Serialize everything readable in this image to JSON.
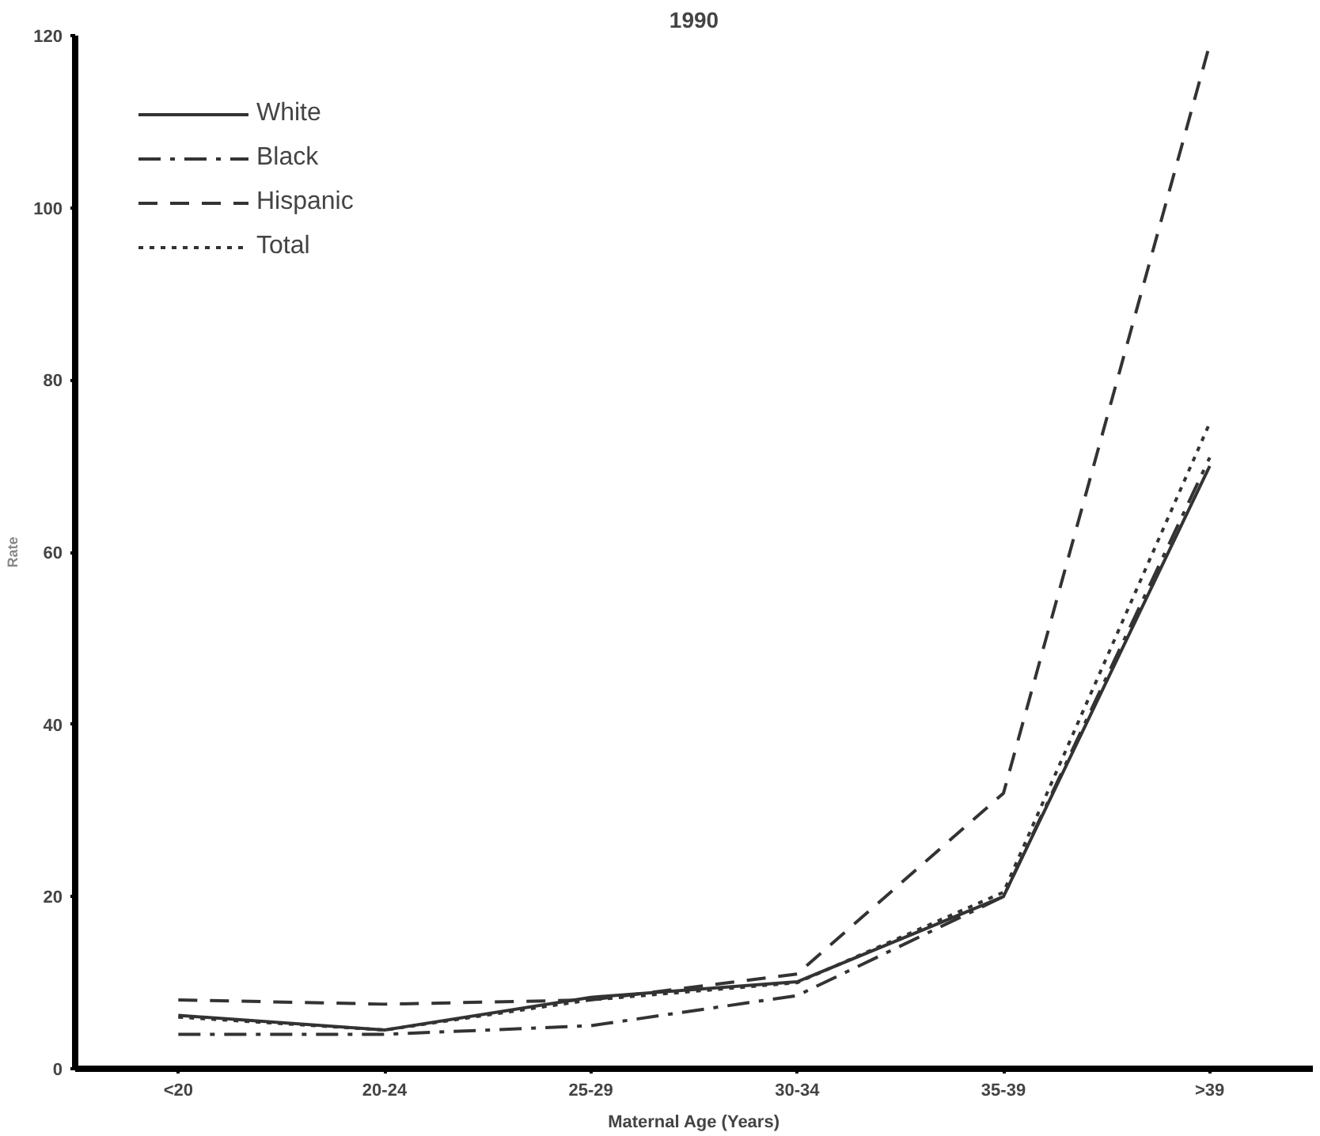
{
  "chart_data": {
    "type": "line",
    "title": "1990",
    "xlabel": "Maternal Age (Years)",
    "ylabel": "Rate",
    "categories": [
      "<20",
      "20-24",
      "25-29",
      "30-34",
      "35-39",
      ">39"
    ],
    "ylim": [
      0,
      120
    ],
    "yticks": [
      0,
      20,
      40,
      60,
      80,
      100,
      120
    ],
    "grid": false,
    "legend": "top left",
    "marker": "none",
    "series": [
      {
        "name": "White",
        "color": "#333333",
        "line_style": "solid",
        "values": [
          6.2,
          4.5,
          8.3,
          10.1,
          20,
          70
        ]
      },
      {
        "name": "Black",
        "color": "#333333",
        "line_style": "dashdot",
        "values": [
          4,
          4,
          5,
          8.5,
          20,
          71
        ]
      },
      {
        "name": "Hispanic",
        "color": "#333333",
        "line_style": "dashed",
        "values": [
          8,
          7.5,
          8,
          11,
          32,
          119
        ]
      },
      {
        "name": "Total",
        "color": "#333333",
        "line_style": "dotted",
        "values": [
          6,
          4.5,
          8,
          10,
          20.5,
          75
        ]
      }
    ]
  }
}
